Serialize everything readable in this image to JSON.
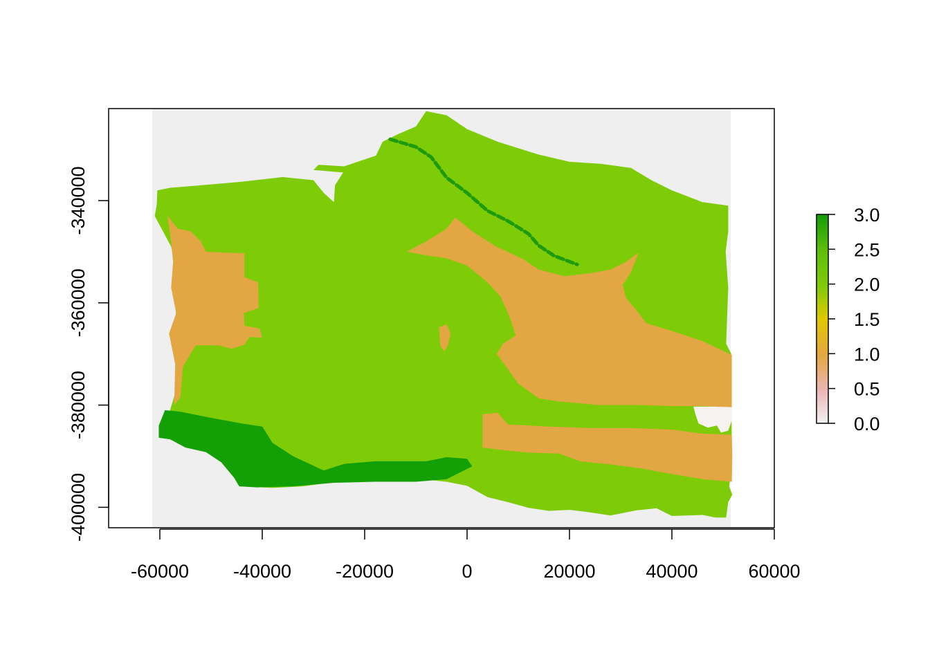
{
  "chart_data": {
    "type": "heatmap",
    "title": "",
    "xlabel": "",
    "ylabel": "",
    "xlim": [
      -70000,
      60000
    ],
    "ylim": [
      -404000,
      -322000
    ],
    "raster_extent": {
      "x": [
        -61500,
        51500
      ],
      "y": [
        -404000,
        -322000
      ]
    },
    "x_ticks": [
      -60000,
      -40000,
      -20000,
      0,
      20000,
      40000,
      60000
    ],
    "x_tick_labels": [
      "-60000",
      "-40000",
      "-20000",
      "0",
      "20000",
      "40000",
      "60000"
    ],
    "y_ticks": [
      -340000,
      -360000,
      -380000,
      -400000
    ],
    "y_tick_labels": [
      "-340000",
      "-360000",
      "-380000",
      "-400000"
    ],
    "legend": {
      "position": "right",
      "range": [
        0.0,
        3.0
      ],
      "ticks": [
        0.0,
        0.5,
        1.0,
        1.5,
        2.0,
        2.5,
        3.0
      ],
      "tick_labels": [
        "0.0",
        "0.5",
        "1.0",
        "1.5",
        "2.0",
        "2.5",
        "3.0"
      ]
    },
    "color_scale": [
      {
        "value": 0.0,
        "color": "#f2f2f2"
      },
      {
        "value": 0.5,
        "color": "#ebb5b3"
      },
      {
        "value": 1.0,
        "color": "#e2a73f"
      },
      {
        "value": 1.5,
        "color": "#e2c800"
      },
      {
        "value": 2.0,
        "color": "#7ecb07"
      },
      {
        "value": 2.5,
        "color": "#5fbe0a"
      },
      {
        "value": 3.0,
        "color": "#119c07"
      }
    ],
    "background_color": "#efefef",
    "regions": [
      {
        "name": "land",
        "value": 2.0,
        "color": "#7ecc08",
        "polygon": [
          [
            -60500,
            -338000
          ],
          [
            -58000,
            -337500
          ],
          [
            -52000,
            -337000
          ],
          [
            -44000,
            -336300
          ],
          [
            -36000,
            -335400
          ],
          [
            -30000,
            -336000
          ],
          [
            -28000,
            -338500
          ],
          [
            -26000,
            -340300
          ],
          [
            -25800,
            -337000
          ],
          [
            -24200,
            -334500
          ],
          [
            -30000,
            -334000
          ],
          [
            -29000,
            -333000
          ],
          [
            -24000,
            -333300
          ],
          [
            -17800,
            -331200
          ],
          [
            -16500,
            -328500
          ],
          [
            -13500,
            -327000
          ],
          [
            -10000,
            -325500
          ],
          [
            -8000,
            -322500
          ],
          [
            -4000,
            -323300
          ],
          [
            0,
            -326000
          ],
          [
            6000,
            -328500
          ],
          [
            14000,
            -331000
          ],
          [
            20000,
            -332400
          ],
          [
            26000,
            -332800
          ],
          [
            32000,
            -333600
          ],
          [
            36000,
            -336000
          ],
          [
            40000,
            -338000
          ],
          [
            46000,
            -340300
          ],
          [
            51000,
            -341000
          ],
          [
            51000,
            -346000
          ],
          [
            50500,
            -350000
          ],
          [
            51000,
            -357000
          ],
          [
            50600,
            -368000
          ],
          [
            51600,
            -370000
          ],
          [
            51700,
            -390000
          ],
          [
            51200,
            -396000
          ],
          [
            51800,
            -397500
          ],
          [
            51000,
            -399000
          ],
          [
            50600,
            -402000
          ],
          [
            48500,
            -402000
          ],
          [
            46000,
            -401500
          ],
          [
            40000,
            -401700
          ],
          [
            37000,
            -400200
          ],
          [
            33000,
            -400600
          ],
          [
            28000,
            -401600
          ],
          [
            24000,
            -401000
          ],
          [
            20000,
            -400500
          ],
          [
            16000,
            -400700
          ],
          [
            12000,
            -400100
          ],
          [
            8000,
            -399000
          ],
          [
            4000,
            -398000
          ],
          [
            0,
            -395800
          ],
          [
            -4000,
            -395000
          ],
          [
            -8000,
            -394600
          ],
          [
            -12000,
            -394800
          ],
          [
            -16000,
            -395000
          ],
          [
            -22000,
            -395000
          ],
          [
            -27000,
            -395200
          ],
          [
            -32000,
            -395900
          ],
          [
            -38000,
            -396200
          ],
          [
            -42000,
            -396000
          ],
          [
            -44500,
            -395900
          ],
          [
            -45500,
            -394200
          ],
          [
            -48000,
            -391200
          ],
          [
            -51000,
            -389200
          ],
          [
            -55000,
            -388300
          ],
          [
            -58000,
            -386700
          ],
          [
            -60200,
            -386400
          ],
          [
            -58000,
            -381000
          ],
          [
            -56000,
            -374400
          ],
          [
            -57000,
            -366000
          ],
          [
            -56800,
            -360000
          ],
          [
            -56500,
            -355000
          ],
          [
            -57800,
            -349000
          ],
          [
            -61000,
            -343000
          ],
          [
            -60600,
            -340800
          ]
        ]
      },
      {
        "name": "west-orange",
        "value": 1.0,
        "color": "#e2a742",
        "polygon": [
          [
            -58500,
            -343000
          ],
          [
            -56500,
            -345500
          ],
          [
            -54000,
            -346000
          ],
          [
            -52000,
            -348000
          ],
          [
            -51000,
            -350000
          ],
          [
            -47000,
            -350200
          ],
          [
            -43500,
            -350300
          ],
          [
            -43500,
            -355000
          ],
          [
            -40800,
            -356000
          ],
          [
            -40700,
            -361000
          ],
          [
            -43600,
            -362000
          ],
          [
            -43500,
            -364500
          ],
          [
            -40500,
            -365000
          ],
          [
            -40000,
            -366800
          ],
          [
            -42500,
            -366700
          ],
          [
            -43500,
            -368200
          ],
          [
            -46000,
            -369000
          ],
          [
            -48500,
            -368300
          ],
          [
            -53000,
            -368300
          ],
          [
            -55500,
            -372500
          ],
          [
            -56000,
            -378500
          ],
          [
            -57200,
            -380000
          ],
          [
            -57000,
            -372000
          ],
          [
            -58200,
            -366000
          ],
          [
            -56800,
            -362000
          ],
          [
            -57800,
            -357000
          ],
          [
            -57400,
            -352000
          ],
          [
            -57800,
            -348000
          ]
        ]
      },
      {
        "name": "central-orange",
        "value": 1.0,
        "color": "#e2a742",
        "polygon": [
          [
            -11800,
            -350000
          ],
          [
            -8000,
            -348000
          ],
          [
            -4000,
            -345500
          ],
          [
            -2300,
            -343300
          ],
          [
            1000,
            -346000
          ],
          [
            5500,
            -348900
          ],
          [
            11000,
            -351500
          ],
          [
            14000,
            -353500
          ],
          [
            19000,
            -354800
          ],
          [
            24000,
            -354200
          ],
          [
            28000,
            -353500
          ],
          [
            31000,
            -352000
          ],
          [
            33500,
            -350200
          ],
          [
            32000,
            -354000
          ],
          [
            30400,
            -356500
          ],
          [
            31000,
            -359000
          ],
          [
            33500,
            -362000
          ],
          [
            35000,
            -364000
          ],
          [
            40000,
            -365500
          ],
          [
            46000,
            -367500
          ],
          [
            51700,
            -370200
          ],
          [
            51700,
            -380500
          ],
          [
            46000,
            -380200
          ],
          [
            40000,
            -380200
          ],
          [
            34000,
            -380000
          ],
          [
            26000,
            -380000
          ],
          [
            18000,
            -379300
          ],
          [
            14000,
            -378700
          ],
          [
            10000,
            -375800
          ],
          [
            8000,
            -373000
          ],
          [
            5800,
            -370000
          ],
          [
            7000,
            -368000
          ],
          [
            9500,
            -366400
          ],
          [
            8400,
            -363000
          ],
          [
            6500,
            -358700
          ],
          [
            4000,
            -356000
          ],
          [
            0,
            -352700
          ],
          [
            -4000,
            -351300
          ],
          [
            -8000,
            -350700
          ]
        ]
      },
      {
        "name": "south-orange",
        "value": 1.0,
        "color": "#e2a742",
        "polygon": [
          [
            3000,
            -381800
          ],
          [
            6000,
            -381500
          ],
          [
            8000,
            -383800
          ],
          [
            16000,
            -384200
          ],
          [
            24000,
            -384500
          ],
          [
            32000,
            -384500
          ],
          [
            40000,
            -384800
          ],
          [
            46000,
            -385600
          ],
          [
            51700,
            -385800
          ],
          [
            51800,
            -390000
          ],
          [
            51700,
            -395000
          ],
          [
            46000,
            -394500
          ],
          [
            40000,
            -393500
          ],
          [
            34000,
            -392400
          ],
          [
            28000,
            -391600
          ],
          [
            22000,
            -391000
          ],
          [
            18000,
            -389500
          ],
          [
            12000,
            -389300
          ],
          [
            6000,
            -388700
          ],
          [
            3000,
            -388300
          ]
        ]
      },
      {
        "name": "small-orange",
        "value": 1.0,
        "color": "#e2a742",
        "polygon": [
          [
            -5500,
            -364800
          ],
          [
            -4000,
            -364200
          ],
          [
            -3200,
            -366000
          ],
          [
            -3800,
            -368500
          ],
          [
            -4500,
            -369500
          ],
          [
            -5200,
            -368500
          ]
        ]
      },
      {
        "name": "white-patch",
        "value": 0.0,
        "color": "#f5f2f0",
        "polygon": [
          [
            44200,
            -380300
          ],
          [
            48000,
            -380300
          ],
          [
            51700,
            -380400
          ],
          [
            51700,
            -383000
          ],
          [
            51000,
            -385000
          ],
          [
            49600,
            -385400
          ],
          [
            48800,
            -384000
          ],
          [
            47000,
            -384400
          ],
          [
            45200,
            -383600
          ],
          [
            44600,
            -381800
          ]
        ]
      },
      {
        "name": "coastal-green",
        "value": 3.0,
        "color": "#13a006",
        "polygon": [
          [
            -59000,
            -381000
          ],
          [
            -56000,
            -381300
          ],
          [
            -50000,
            -382500
          ],
          [
            -44000,
            -383600
          ],
          [
            -40000,
            -384200
          ],
          [
            -38000,
            -387400
          ],
          [
            -34000,
            -390000
          ],
          [
            -28000,
            -392800
          ],
          [
            -24000,
            -391500
          ],
          [
            -18000,
            -391000
          ],
          [
            -12000,
            -391000
          ],
          [
            -8000,
            -391000
          ],
          [
            -4000,
            -390200
          ],
          [
            0,
            -390500
          ],
          [
            1000,
            -392000
          ],
          [
            -4000,
            -394500
          ],
          [
            -10000,
            -395000
          ],
          [
            -18000,
            -395000
          ],
          [
            -26000,
            -395200
          ],
          [
            -34000,
            -395900
          ],
          [
            -41000,
            -396100
          ],
          [
            -44500,
            -395900
          ],
          [
            -45500,
            -394200
          ],
          [
            -48000,
            -391200
          ],
          [
            -51000,
            -389200
          ],
          [
            -55000,
            -388300
          ],
          [
            -58000,
            -386700
          ],
          [
            -60200,
            -386400
          ],
          [
            -60200,
            -384000
          ]
        ]
      },
      {
        "name": "northern-dark-band",
        "value": 2.5,
        "color": "#1e9a10",
        "polyline": [
          [
            -15000,
            -328000
          ],
          [
            -10000,
            -329500
          ],
          [
            -7000,
            -331500
          ],
          [
            -4000,
            -335500
          ],
          [
            0,
            -338500
          ],
          [
            4000,
            -342000
          ],
          [
            8000,
            -344000
          ],
          [
            12000,
            -346500
          ],
          [
            14000,
            -348800
          ],
          [
            17000,
            -350800
          ],
          [
            21500,
            -352500
          ]
        ]
      }
    ]
  }
}
